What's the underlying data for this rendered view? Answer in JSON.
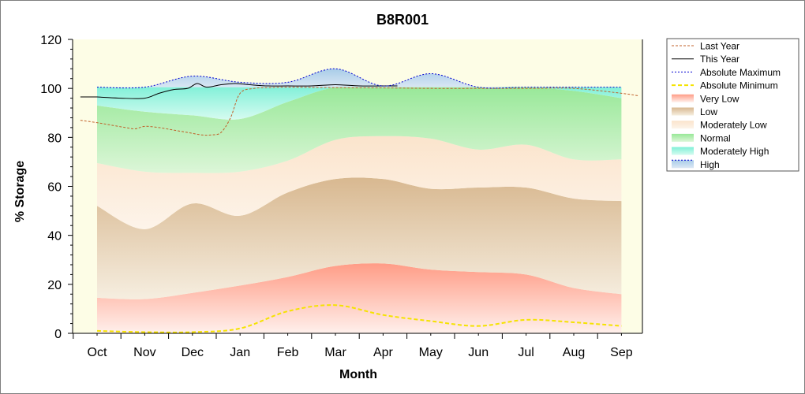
{
  "chart_data": {
    "type": "area",
    "title": "B8R001",
    "xlabel": "Month",
    "ylabel": "% Storage",
    "ylim": [
      0,
      120
    ],
    "yticks": [
      0,
      20,
      40,
      60,
      80,
      100,
      120
    ],
    "categories": [
      "Oct",
      "Nov",
      "Dec",
      "Jan",
      "Feb",
      "Mar",
      "Apr",
      "May",
      "Jun",
      "Jul",
      "Aug",
      "Sep"
    ],
    "legend_position": "right",
    "series": [
      {
        "name": "Last Year",
        "kind": "line",
        "color": "#c0602a",
        "dash": "3,2",
        "x": [
          -0.35,
          0,
          0.3,
          0.6,
          0.8,
          1.0,
          1.3,
          1.6,
          1.9,
          2.2,
          2.4,
          2.6,
          2.8,
          3.0,
          3.3,
          3.6,
          4,
          5,
          6,
          7,
          8,
          9,
          10,
          11,
          11.35
        ],
        "values": [
          87,
          86,
          85,
          84,
          83.5,
          84.5,
          84,
          83,
          82,
          81,
          81,
          82,
          88,
          98,
          100,
          100.3,
          100.5,
          100.3,
          100.2,
          100,
          100,
          100,
          100,
          98,
          97
        ]
      },
      {
        "name": "This Year",
        "kind": "line",
        "color": "#000000",
        "dash": "",
        "x": [
          -0.35,
          0,
          0.5,
          1.0,
          1.3,
          1.6,
          1.9,
          2.1,
          2.3,
          2.6,
          2.9,
          3.2,
          3.6,
          4,
          4.5,
          5,
          5.5,
          6,
          6.3
        ],
        "values": [
          96.5,
          96.5,
          96,
          96,
          98,
          99.5,
          100,
          102,
          100.5,
          101.5,
          102,
          101.5,
          101,
          101,
          101,
          101.5,
          101,
          101,
          101
        ]
      },
      {
        "name": "Absolute Maximum",
        "kind": "line",
        "color": "#0000d0",
        "dash": "2,2",
        "x": [
          0,
          1,
          2,
          3,
          4,
          5,
          6,
          7,
          8,
          9,
          10,
          11
        ],
        "values": [
          100.5,
          100.5,
          105,
          102.5,
          102.5,
          108,
          101,
          106,
          100.5,
          100.5,
          100.5,
          100.5
        ]
      },
      {
        "name": "Absolute Minimum",
        "kind": "line",
        "color": "#f5e300",
        "dash": "5,3",
        "x": [
          0,
          1,
          2,
          3,
          4,
          5,
          6,
          7,
          8,
          9,
          10,
          11
        ],
        "values": [
          1,
          0.5,
          0.5,
          2,
          9,
          11.5,
          7.5,
          5,
          3,
          5.5,
          4.5,
          3
        ]
      },
      {
        "name": "Very Low",
        "kind": "band",
        "colors": [
          "#ff9c86",
          "#fff0ec"
        ],
        "lower": [
          0,
          0,
          0,
          0,
          0,
          0,
          0,
          0,
          0,
          0,
          0,
          0
        ],
        "upper": [
          14.5,
          14,
          16.5,
          19.5,
          23,
          27.5,
          28.5,
          26,
          25,
          24,
          18.5,
          16
        ]
      },
      {
        "name": "Low",
        "kind": "band",
        "colors": [
          "#d8b890",
          "#f6eee0"
        ],
        "lower": [
          14.5,
          14,
          16.5,
          19.5,
          23,
          27.5,
          28.5,
          26,
          25,
          24,
          18.5,
          16
        ],
        "upper": [
          52,
          42.5,
          53,
          48,
          57.5,
          63,
          63,
          59,
          59.5,
          59.5,
          55,
          54
        ]
      },
      {
        "name": "Moderately Low",
        "kind": "band",
        "colors": [
          "#fbe4cc",
          "#fdf4ea"
        ],
        "lower": [
          52,
          42.5,
          53,
          48,
          57.5,
          63,
          63,
          59,
          59.5,
          59.5,
          55,
          54
        ],
        "upper": [
          69.5,
          66,
          65.5,
          66,
          70.5,
          79,
          80.5,
          79.5,
          75,
          77,
          71,
          71
        ]
      },
      {
        "name": "Normal",
        "kind": "band",
        "colors": [
          "#98e898",
          "#dcf6d8"
        ],
        "lower": [
          69.5,
          66,
          65.5,
          66,
          70.5,
          79,
          80.5,
          79.5,
          75,
          77,
          71,
          71
        ],
        "upper": [
          93,
          90.5,
          89,
          87.5,
          94.5,
          100.5,
          100.5,
          100.5,
          100.5,
          100.5,
          99,
          96
        ]
      },
      {
        "name": "Moderately High",
        "kind": "band",
        "colors": [
          "#80f0d8",
          "#d6fbf0"
        ],
        "lower": [
          93,
          90.5,
          89,
          87.5,
          94.5,
          100.5,
          100.5,
          100.5,
          100.5,
          100.5,
          99,
          96
        ],
        "upper": [
          100.5,
          100.5,
          100.5,
          100.5,
          100.5,
          100.5,
          100.5,
          100.5,
          100.5,
          100.5,
          100.5,
          100.5
        ]
      },
      {
        "name": "High",
        "kind": "band",
        "colors": [
          "#a8cce8",
          "#dce8f4"
        ],
        "lower": [
          100.5,
          100.5,
          100.5,
          100.5,
          100.5,
          100.5,
          100.5,
          100.5,
          100.5,
          100.5,
          100.5,
          100.5
        ],
        "upper": [
          100.5,
          100.5,
          105,
          102.5,
          102.5,
          108,
          101,
          106,
          100.5,
          100.5,
          100.5,
          100.5
        ]
      }
    ]
  }
}
